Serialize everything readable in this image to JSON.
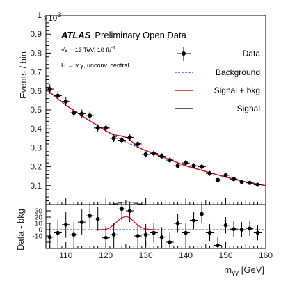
{
  "chart_data": [
    {
      "type": "scatter",
      "panel": "main",
      "title": "",
      "xlabel": "mγγ [GeV]",
      "ylabel": "Events / bin",
      "y_multiplier": "×10",
      "y_multiplier_exp": "3",
      "xlim": [
        105,
        160
      ],
      "ylim": [
        0,
        1.0
      ],
      "y_ticks": [
        "0.1",
        "0.2",
        "0.3",
        "0.4",
        "0.5",
        "0.6",
        "0.7",
        "0.8",
        "0.9",
        "1"
      ],
      "x_ticks": [
        "110",
        "120",
        "130",
        "140",
        "150",
        "160"
      ],
      "annotations": {
        "atlas": "ATLAS",
        "atlas_sub": "Preliminary Open Data",
        "energy": "√s = 13 TeV, 10 fb",
        "energy_exp": "-1",
        "channel": "H → γ γ, unconv. central"
      },
      "legend": {
        "placement": "top-right",
        "entries": [
          {
            "label": "Data",
            "style": "marker"
          },
          {
            "label": "Background",
            "style": "dashed",
            "color": "#1f3bd6"
          },
          {
            "label": "Signal + bkg",
            "style": "line",
            "color": "#d4151d"
          },
          {
            "label": "Signal",
            "style": "line",
            "color": "#000000"
          }
        ]
      },
      "data": {
        "x": [
          106,
          108,
          110,
          112,
          114,
          116,
          118,
          120,
          122,
          124,
          126,
          128,
          130,
          132,
          134,
          136,
          138,
          140,
          142,
          144,
          146,
          148,
          150,
          152,
          154,
          156,
          158
        ],
        "y": [
          0.61,
          0.575,
          0.545,
          0.485,
          0.48,
          0.47,
          0.405,
          0.405,
          0.35,
          0.34,
          0.355,
          0.32,
          0.265,
          0.27,
          0.255,
          0.235,
          0.205,
          0.22,
          0.205,
          0.2,
          0.165,
          0.13,
          0.155,
          0.135,
          0.12,
          0.115,
          0.105
        ],
        "err": [
          0.025,
          0.024,
          0.023,
          0.022,
          0.022,
          0.022,
          0.02,
          0.02,
          0.019,
          0.018,
          0.019,
          0.018,
          0.016,
          0.016,
          0.016,
          0.015,
          0.014,
          0.015,
          0.014,
          0.014,
          0.013,
          0.011,
          0.012,
          0.012,
          0.011,
          0.011,
          0.01
        ]
      },
      "background": {
        "x": [
          105,
          110,
          115,
          120,
          125,
          130,
          135,
          140,
          145,
          150,
          155,
          160
        ],
        "y": [
          0.61,
          0.525,
          0.455,
          0.39,
          0.33,
          0.285,
          0.245,
          0.205,
          0.175,
          0.145,
          0.12,
          0.1
        ]
      },
      "signal_plus_bkg": {
        "x": [
          105,
          110,
          115,
          120,
          121,
          122,
          123,
          124,
          125,
          126,
          127,
          128,
          129,
          130,
          135,
          140,
          145,
          150,
          155,
          160
        ],
        "y": [
          0.61,
          0.525,
          0.455,
          0.39,
          0.378,
          0.37,
          0.365,
          0.362,
          0.355,
          0.343,
          0.323,
          0.305,
          0.294,
          0.285,
          0.245,
          0.205,
          0.175,
          0.145,
          0.12,
          0.1
        ]
      },
      "signal": {
        "x": [
          120,
          121,
          122,
          123,
          124,
          125,
          126,
          127,
          128,
          129,
          130
        ],
        "y": [
          0.0,
          0.001,
          0.004,
          0.008,
          0.012,
          0.014,
          0.012,
          0.007,
          0.003,
          0.001,
          0.0
        ]
      }
    },
    {
      "type": "scatter",
      "panel": "ratio",
      "ylabel": "Data - bkg",
      "xlabel": "mγγ [GeV]",
      "xlim": [
        105,
        160
      ],
      "ylim": [
        -30,
        40
      ],
      "y_ticks": [
        "-10",
        "0",
        "10",
        "20",
        "30"
      ],
      "y_ticks_extra": [
        "-20"
      ],
      "data": {
        "x": [
          106,
          108,
          110,
          112,
          114,
          116,
          118,
          120,
          122,
          124,
          126,
          128,
          130,
          132,
          134,
          136,
          138,
          140,
          142,
          144,
          146,
          148,
          150,
          152,
          154,
          156,
          158
        ],
        "y": [
          -12,
          -5,
          8,
          -8,
          12,
          22,
          17,
          -13,
          -8,
          33,
          30,
          -10,
          -8,
          -5,
          -12,
          -20,
          10,
          -5,
          15,
          25,
          -5,
          -25,
          7,
          1,
          0,
          2,
          -5
        ],
        "err": [
          22,
          22,
          21,
          20,
          20,
          20,
          19,
          19,
          18,
          18,
          18,
          17,
          17,
          16,
          16,
          15,
          15,
          15,
          14,
          14,
          14,
          13,
          13,
          13,
          12,
          12,
          12
        ]
      },
      "signal": {
        "x": [
          118,
          120,
          121,
          122,
          123,
          124,
          125,
          126,
          127,
          128,
          129,
          130,
          132
        ],
        "y": [
          0,
          0.5,
          3,
          8,
          14,
          19,
          21,
          19,
          13,
          7,
          3,
          1,
          0
        ]
      }
    }
  ]
}
